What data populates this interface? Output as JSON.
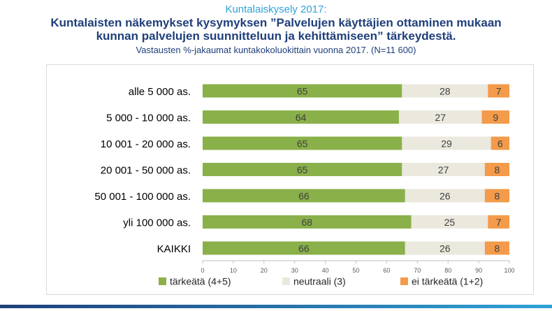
{
  "header": {
    "suptitle": "Kuntalaiskysely 2017:",
    "title_line1": "Kuntalaisten näkemykset kysymyksen ”Palvelujen käyttäjien ottaminen mukaan",
    "title_line2": "kunnan palvelujen suunnitteluun ja kehittämiseen” tärkeydestä.",
    "subtitle": "Vastausten %-jakaumat kuntakokoluokittain vuonna 2017. (N=11 600)"
  },
  "colors": {
    "green": "#8ab04a",
    "neutral": "#ebe8de",
    "orange": "#f39b4a",
    "title": "#1f3f7a",
    "accent": "#2fa3d6"
  },
  "chart_data": {
    "type": "bar",
    "orientation": "horizontal",
    "stacked": true,
    "categories": [
      "alle 5 000 as.",
      "5 000 - 10 000 as.",
      "10 001 - 20 000 as.",
      "20 001 - 50 000 as.",
      "50 001 - 100 000 as.",
      "yli 100 000 as.",
      "KAIKKI"
    ],
    "series": [
      {
        "name": "tärkeätä (4+5)",
        "values": [
          65,
          64,
          65,
          65,
          66,
          68,
          66
        ]
      },
      {
        "name": "neutraali (3)",
        "values": [
          28,
          27,
          29,
          27,
          26,
          25,
          26
        ]
      },
      {
        "name": "ei tärkeätä (1+2)",
        "values": [
          7,
          9,
          6,
          8,
          8,
          7,
          8
        ]
      }
    ],
    "xlim": [
      0,
      100
    ],
    "xticks": [
      0,
      10,
      20,
      30,
      40,
      50,
      60,
      70,
      80,
      90,
      100
    ],
    "grid": false,
    "legend_position": "bottom"
  }
}
